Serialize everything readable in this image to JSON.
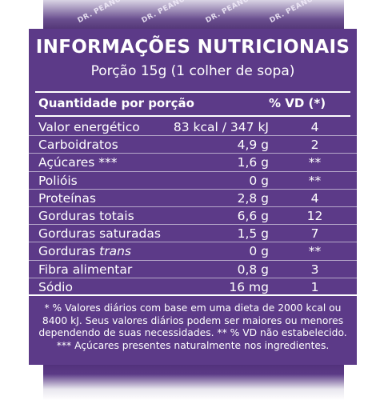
{
  "brand": "DR. PEANUT",
  "label": {
    "title": "INFORMAÇÕES NUTRICIONAIS",
    "serving": "Porção 15g (1 colher de sopa)",
    "header": {
      "quantity": "Quantidade por porção",
      "dv": "% VD (*)"
    },
    "rows": [
      {
        "name": "Valor energético",
        "amount": "83 kcal / 347 kJ",
        "dv": "4"
      },
      {
        "name": "Carboidratos",
        "amount": "4,9 g",
        "dv": "2"
      },
      {
        "name": "Açúcares ***",
        "amount": "1,6 g",
        "dv": "**"
      },
      {
        "name": "Polióis",
        "amount": "0 g",
        "dv": "**"
      },
      {
        "name": "Proteínas",
        "amount": "2,8 g",
        "dv": "4"
      },
      {
        "name": "Gorduras totais",
        "amount": "6,6 g",
        "dv": "12"
      },
      {
        "name": "Gorduras saturadas",
        "amount": "1,5 g",
        "dv": "7"
      },
      {
        "name_prefix": "Gorduras ",
        "name_italic": "trans",
        "amount": "0 g",
        "dv": "**"
      },
      {
        "name": "Fibra alimentar",
        "amount": "0,8 g",
        "dv": "3"
      },
      {
        "name": "Sódio",
        "amount": "16 mg",
        "dv": "1"
      }
    ],
    "footnotes": [
      "* % Valores diários com base em uma dieta de 2000 kcal ou 8400 kJ. Seus valores diários podem ser maiores ou menores dependendo de suas necessidades. ** % VD não estabelecido.",
      "*** Açúcares presentes naturalmente nos ingredientes."
    ]
  },
  "colors": {
    "panel": "#5c3a88",
    "text": "#ffffff"
  }
}
